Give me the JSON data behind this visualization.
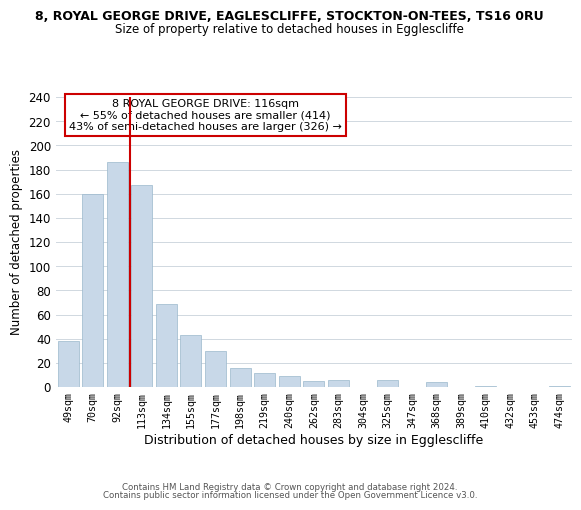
{
  "title": "8, ROYAL GEORGE DRIVE, EAGLESCLIFFE, STOCKTON-ON-TEES, TS16 0RU",
  "subtitle": "Size of property relative to detached houses in Egglescliffe",
  "xlabel": "Distribution of detached houses by size in Egglescliffe",
  "ylabel": "Number of detached properties",
  "bar_labels": [
    "49sqm",
    "70sqm",
    "92sqm",
    "113sqm",
    "134sqm",
    "155sqm",
    "177sqm",
    "198sqm",
    "219sqm",
    "240sqm",
    "262sqm",
    "283sqm",
    "304sqm",
    "325sqm",
    "347sqm",
    "368sqm",
    "389sqm",
    "410sqm",
    "432sqm",
    "453sqm",
    "474sqm"
  ],
  "bar_values": [
    38,
    160,
    186,
    167,
    69,
    43,
    30,
    16,
    12,
    9,
    5,
    6,
    0,
    6,
    0,
    4,
    0,
    1,
    0,
    0,
    1
  ],
  "bar_color": "#c8d8e8",
  "bar_edge_color": "#9ab8cc",
  "vline_color": "#cc0000",
  "ylim": [
    0,
    240
  ],
  "yticks": [
    0,
    20,
    40,
    60,
    80,
    100,
    120,
    140,
    160,
    180,
    200,
    220,
    240
  ],
  "annotation_title": "8 ROYAL GEORGE DRIVE: 116sqm",
  "annotation_line1": "← 55% of detached houses are smaller (414)",
  "annotation_line2": "43% of semi-detached houses are larger (326) →",
  "annotation_box_color": "#ffffff",
  "annotation_box_edge": "#cc0000",
  "footer1": "Contains HM Land Registry data © Crown copyright and database right 2024.",
  "footer2": "Contains public sector information licensed under the Open Government Licence v3.0.",
  "background_color": "#ffffff",
  "grid_color": "#d0d8e0"
}
